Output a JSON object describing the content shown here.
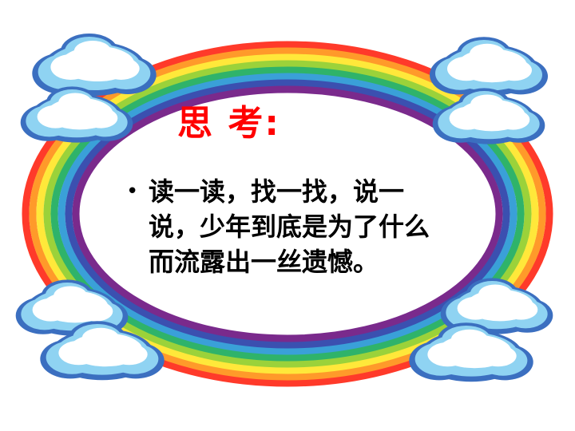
{
  "slide": {
    "title": "思 考:",
    "bullet_symbol": "•",
    "bullet_text": "读一读，找一找，说一说，少年到底是为了什么而流露出一丝遗憾。",
    "colors": {
      "title": "#ff0000",
      "rainbow": [
        "#7a2a8c",
        "#3b50b0",
        "#3aa0d8",
        "#2fb36a",
        "#9bd23a",
        "#ffe83a",
        "#ff9a2a",
        "#ff3a2a"
      ],
      "cloud_fill": "#ffffff",
      "cloud_shadow": "#8fd3f2",
      "cloud_outline": "#3b6fc0"
    },
    "decoration": "rainbow-cloud-frame"
  }
}
